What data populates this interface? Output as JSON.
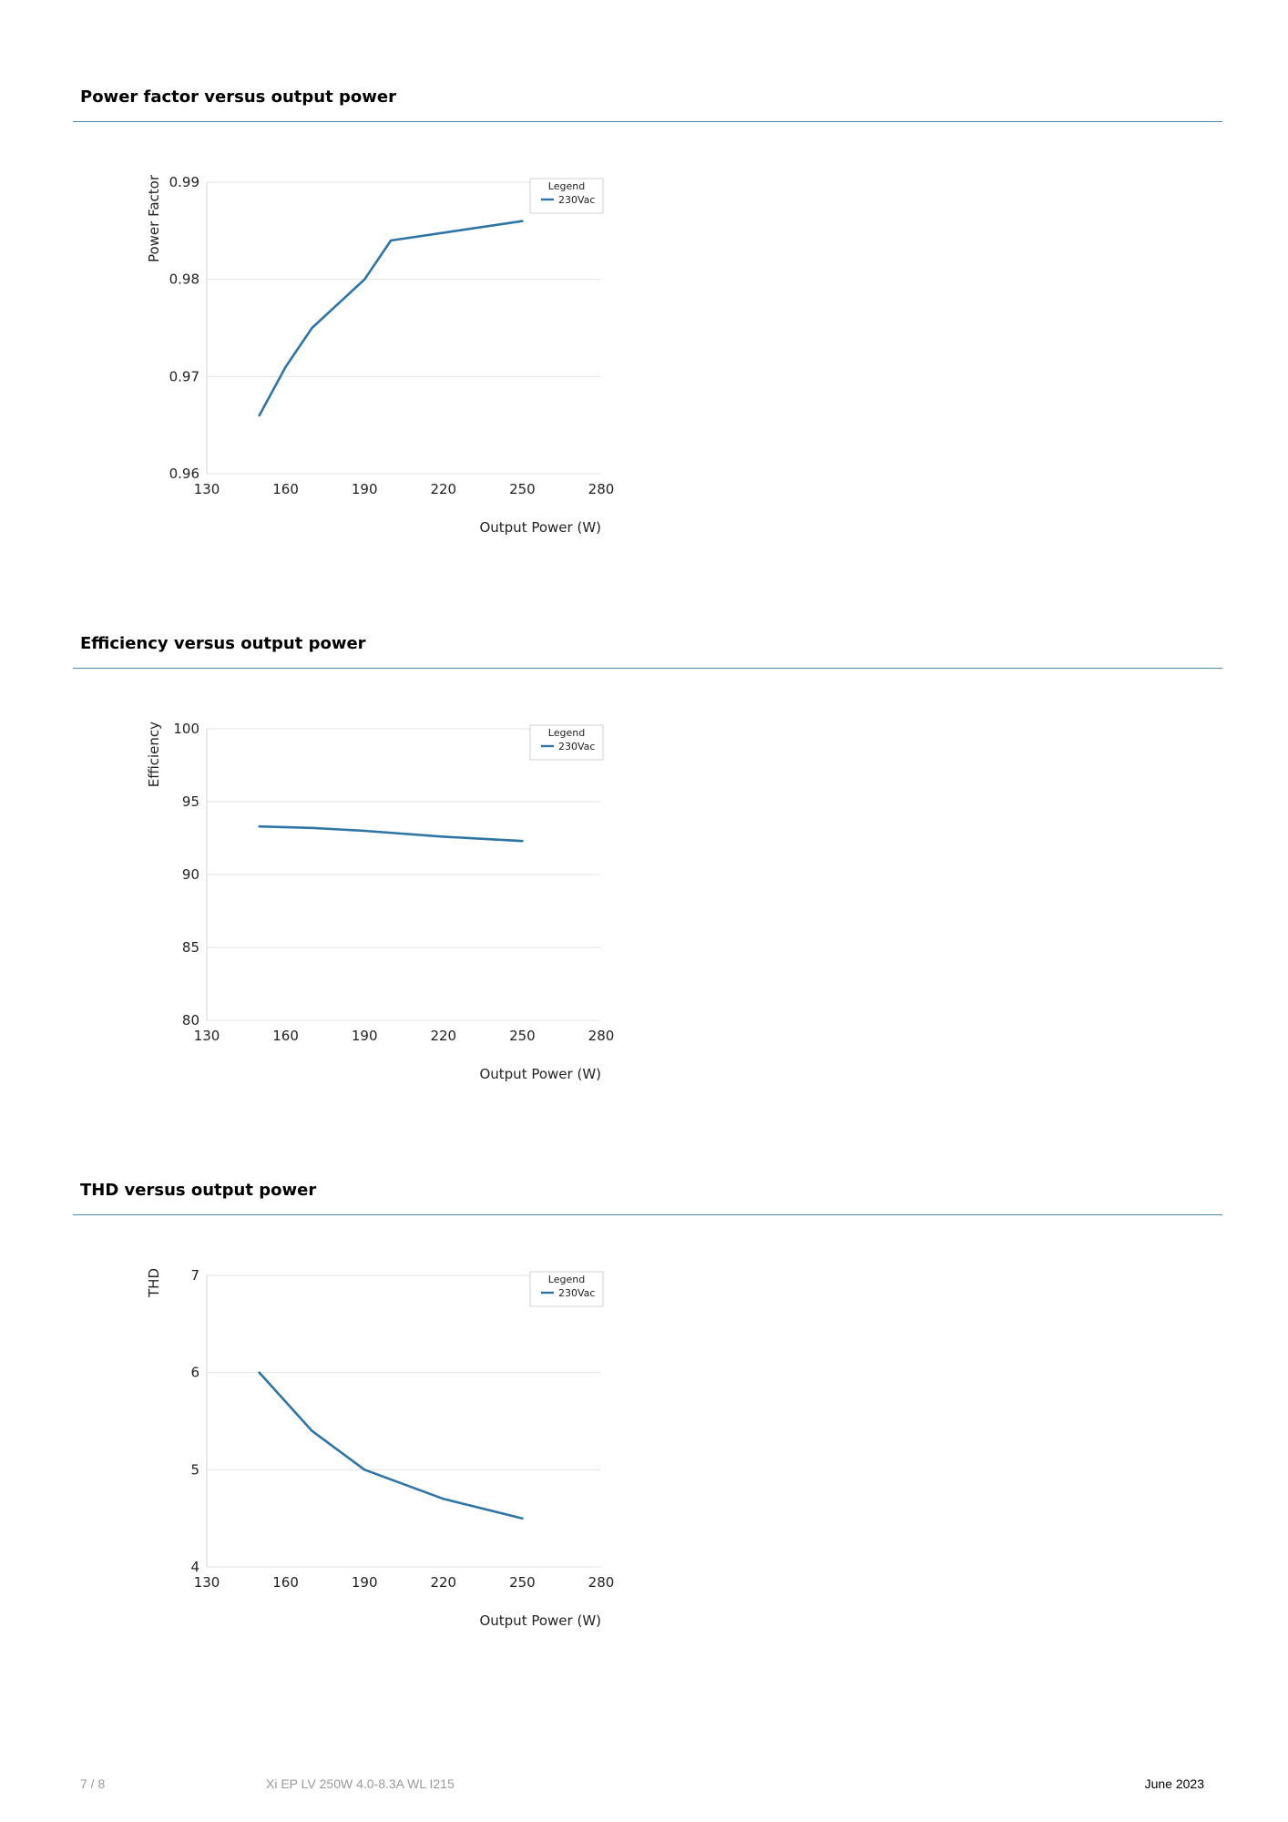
{
  "sections": [
    {
      "title": "Power factor versus output power"
    },
    {
      "title": "Efficiency versus output power"
    },
    {
      "title": "THD versus output power"
    }
  ],
  "chart_data": [
    {
      "type": "line",
      "title": "",
      "xlabel": "Output Power (W)",
      "ylabel": "Power Factor",
      "xlim": [
        130,
        280
      ],
      "ylim": [
        0.96,
        0.99
      ],
      "x_ticks": [
        "130",
        "160",
        "190",
        "220",
        "250",
        "280"
      ],
      "y_ticks": [
        "0.96",
        "0.97",
        "0.98",
        "0.99"
      ],
      "grid": true,
      "legend": {
        "title": "Legend",
        "position": "top-right"
      },
      "series": [
        {
          "name": "230Vac",
          "color": "#2e75a6",
          "x": [
            150,
            160,
            170,
            190,
            200,
            250
          ],
          "y": [
            0.966,
            0.971,
            0.975,
            0.98,
            0.984,
            0.986
          ]
        }
      ]
    },
    {
      "type": "line",
      "title": "",
      "xlabel": "Output Power (W)",
      "ylabel": "Efficiency",
      "xlim": [
        130,
        280
      ],
      "ylim": [
        80,
        100
      ],
      "x_ticks": [
        "130",
        "160",
        "190",
        "220",
        "250",
        "280"
      ],
      "y_ticks": [
        "80",
        "85",
        "90",
        "95",
        "100"
      ],
      "grid": true,
      "legend": {
        "title": "Legend",
        "position": "top-right"
      },
      "series": [
        {
          "name": "230Vac",
          "color": "#2e75a6",
          "x": [
            150,
            170,
            190,
            220,
            250
          ],
          "y": [
            93.3,
            93.2,
            93.0,
            92.6,
            92.3
          ]
        }
      ]
    },
    {
      "type": "line",
      "title": "",
      "xlabel": "Output Power (W)",
      "ylabel": "THD",
      "xlim": [
        130,
        280
      ],
      "ylim": [
        4,
        7
      ],
      "x_ticks": [
        "130",
        "160",
        "190",
        "220",
        "250",
        "280"
      ],
      "y_ticks": [
        "4",
        "5",
        "6",
        "7"
      ],
      "grid": true,
      "legend": {
        "title": "Legend",
        "position": "top-right"
      },
      "series": [
        {
          "name": "230Vac",
          "color": "#2e75a6",
          "x": [
            150,
            170,
            190,
            220,
            250
          ],
          "y": [
            6.0,
            5.4,
            5.0,
            4.7,
            4.5
          ]
        }
      ]
    }
  ],
  "footer": {
    "page": "7 / 8",
    "document": "Xi EP LV 250W 4.0-8.3A WL I215",
    "date": "June 2023"
  }
}
